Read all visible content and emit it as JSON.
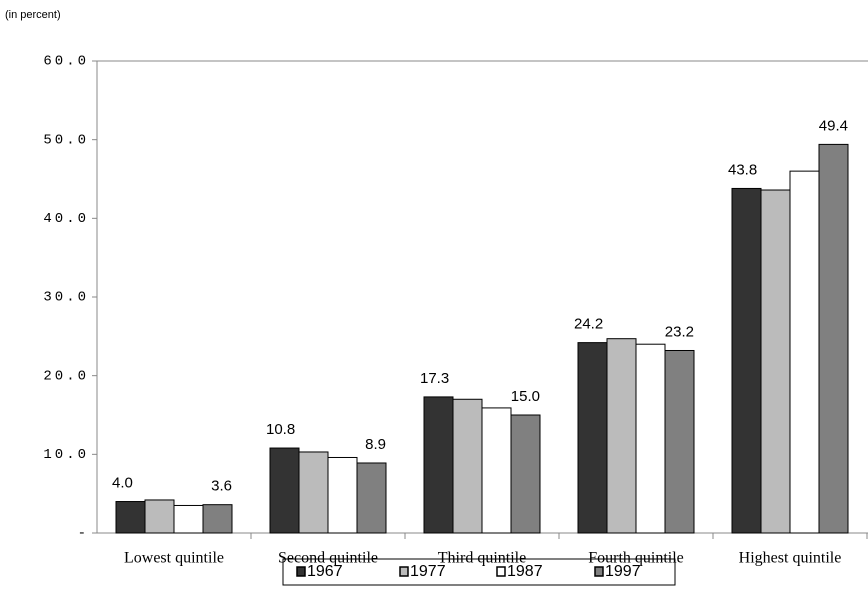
{
  "chart_data": {
    "type": "bar",
    "annotation": "(in percent)",
    "categories": [
      "Lowest quintile",
      "Second quintile",
      "Third quintile",
      "Fourth quintile",
      "Highest quintile"
    ],
    "series": [
      {
        "name": "1967",
        "color": "#333333",
        "values": [
          4.0,
          10.8,
          17.3,
          24.2,
          43.8
        ],
        "value_labels": [
          "4.0",
          "10.8",
          "17.3",
          "24.2",
          "43.8"
        ]
      },
      {
        "name": "1977",
        "color": "#bbbbbb",
        "values": [
          4.2,
          10.3,
          17.0,
          24.7,
          43.6
        ]
      },
      {
        "name": "1987",
        "color": "#ffffff",
        "values": [
          3.5,
          9.6,
          15.9,
          24.0,
          46.0
        ]
      },
      {
        "name": "1997",
        "color": "#808080",
        "values": [
          3.6,
          8.9,
          15.0,
          23.2,
          49.4
        ],
        "value_labels": [
          "3.6",
          "8.9",
          "15.0",
          "23.2",
          "49.4"
        ]
      }
    ],
    "ylim": [
      0,
      60
    ],
    "yticks": [
      {
        "value": 0,
        "label": "-"
      },
      {
        "value": 10,
        "label": "10.0"
      },
      {
        "value": 20,
        "label": "20.0"
      },
      {
        "value": 30,
        "label": "30.0"
      },
      {
        "value": 40,
        "label": "40.0"
      },
      {
        "value": 50,
        "label": "50.0"
      },
      {
        "value": 60,
        "label": "60.0"
      }
    ],
    "legend": "bottom"
  }
}
